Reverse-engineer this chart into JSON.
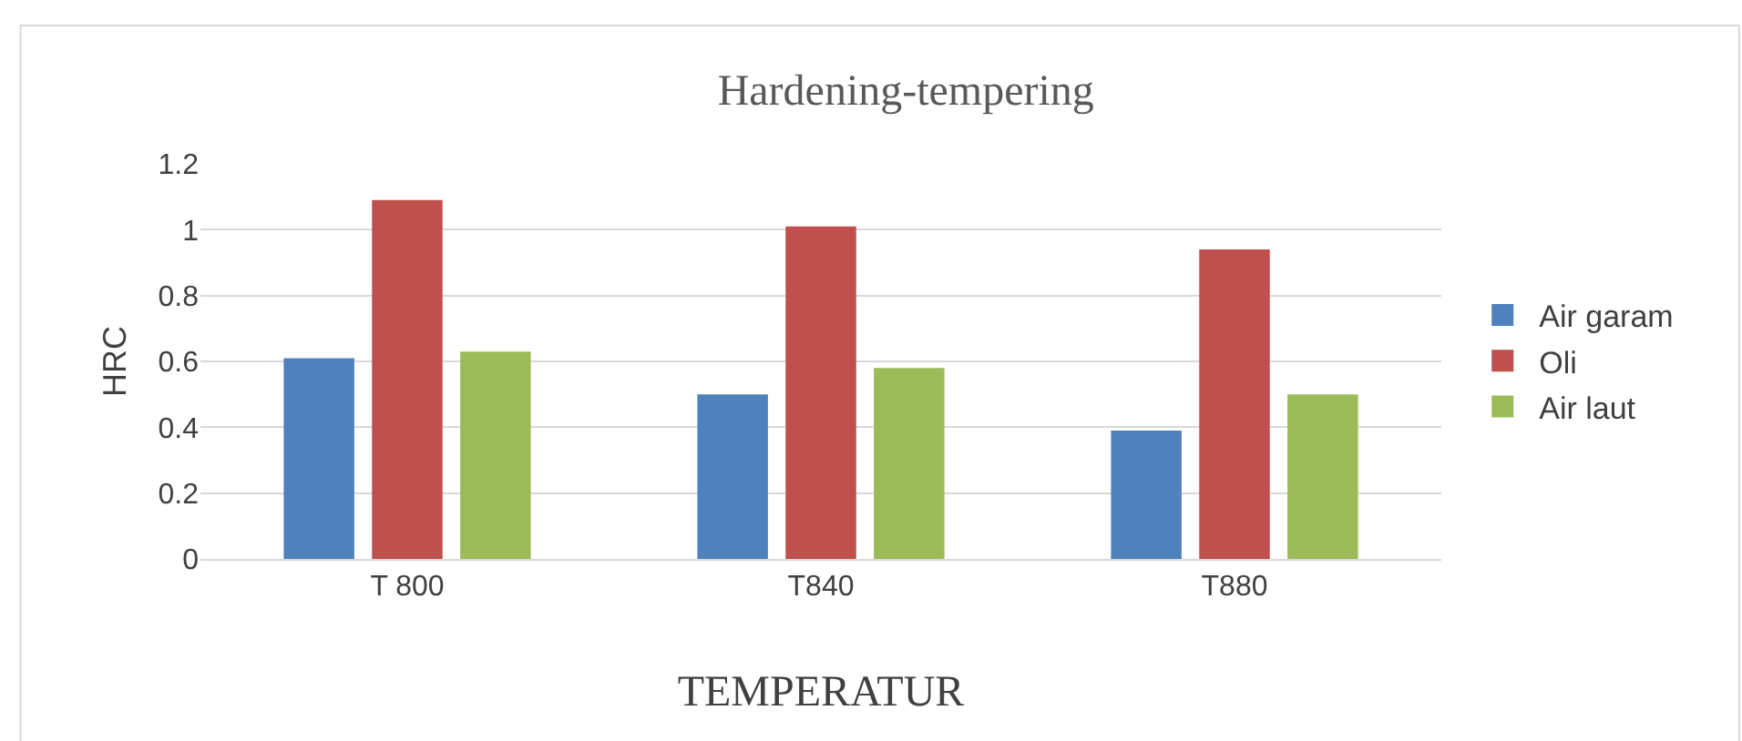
{
  "chart_data": {
    "type": "bar",
    "title": "Hardening-tempering",
    "xlabel": "TEMPERATUR",
    "ylabel": "HRC",
    "categories": [
      "T 800",
      "T840",
      "T880"
    ],
    "series": [
      {
        "name": "Air garam",
        "color": "#4f81bd",
        "values": [
          0.61,
          0.5,
          0.39
        ]
      },
      {
        "name": "Oli",
        "color": "#c0504d",
        "values": [
          1.09,
          1.01,
          0.94
        ]
      },
      {
        "name": "Air laut",
        "color": "#9bbb59",
        "values": [
          0.63,
          0.58,
          0.5
        ]
      }
    ],
    "ylim": [
      0,
      1.2
    ],
    "yticks": [
      0,
      0.2,
      0.4,
      0.6,
      0.8,
      1,
      1.2
    ],
    "grid": "y",
    "legend": "right"
  }
}
